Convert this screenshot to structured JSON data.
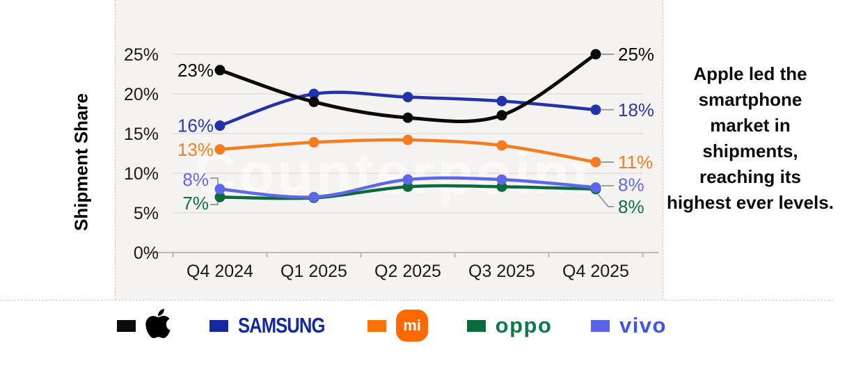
{
  "watermark": "Counterpoint",
  "side_note": {
    "text": "Apple led the smartphone market in shipments, reaching its highest ever levels."
  },
  "chart_data": {
    "type": "line",
    "title": "",
    "ylabel": "Shipment Share",
    "xlabel": "",
    "categories": [
      "Q4 2024",
      "Q1 2025",
      "Q2 2025",
      "Q3 2025",
      "Q4 2025"
    ],
    "yticks": [
      "0%",
      "5%",
      "10%",
      "15%",
      "20%",
      "25%"
    ],
    "ytick_values": [
      0,
      5,
      10,
      15,
      20,
      25
    ],
    "ylim": [
      0,
      27
    ],
    "grid": true,
    "legend_position": "bottom",
    "series": [
      {
        "name": "Apple",
        "color": "#0a0a0a",
        "label_color": "#0a0a0a",
        "values": [
          23,
          19,
          17,
          17.3,
          25
        ],
        "first_label": "23%",
        "last_label": "25%"
      },
      {
        "name": "Samsung",
        "color": "#2232aa",
        "label_color": "#2b3aac",
        "values": [
          16,
          20,
          19.6,
          19.1,
          18
        ],
        "first_label": "16%",
        "last_label": "18%"
      },
      {
        "name": "Xiaomi",
        "color": "#f57d20",
        "label_color": "#f57d20",
        "values": [
          13,
          13.9,
          14.2,
          13.5,
          11.4
        ],
        "first_label": "13%",
        "last_label": "11%"
      },
      {
        "name": "OPPO",
        "color": "#0c6a3c",
        "label_color": "#156b45",
        "values": [
          7,
          6.9,
          8.3,
          8.3,
          8
        ],
        "first_label": "7%",
        "last_label": "8%"
      },
      {
        "name": "vivo",
        "color": "#5c68e8",
        "label_color": "#6468e0",
        "values": [
          8,
          7,
          9.2,
          9.2,
          8.2
        ],
        "first_label": "8%",
        "last_label": "8%"
      }
    ]
  },
  "legend": {
    "items": [
      {
        "brand": "Apple",
        "swatch": "#0a0a0a"
      },
      {
        "brand": "Samsung",
        "swatch": "#1428a0",
        "logo_text": "SAMSUNG",
        "logo_color": "#1428a0"
      },
      {
        "brand": "Xiaomi",
        "swatch": "#fa7306",
        "badge_color": "#ff6900",
        "badge_text": "mi"
      },
      {
        "brand": "OPPO",
        "swatch": "#0b6b3d",
        "logo_text": "oppo",
        "logo_color": "#0d7a4b"
      },
      {
        "brand": "vivo",
        "swatch": "#5964e8",
        "logo_text": "vivo",
        "logo_color": "#3d55e8"
      }
    ]
  },
  "colors": {
    "panel_bg": "#f4f3f1",
    "gridline": "#dddcd9",
    "axis": "#b8b6b2",
    "leader": "#9c9c9c",
    "tick_text": "#1a1a1a"
  }
}
